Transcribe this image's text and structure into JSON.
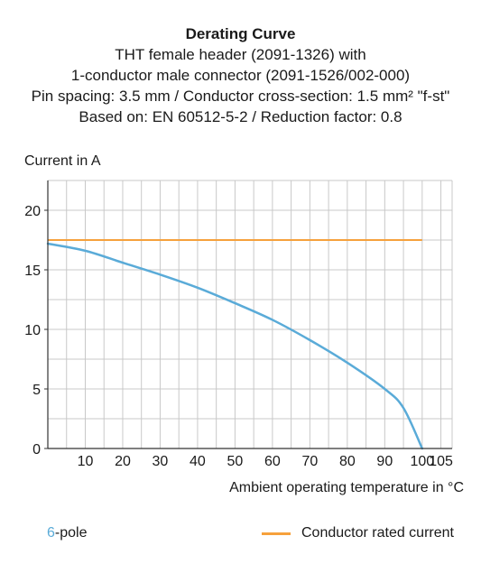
{
  "header": {
    "title": "Derating Curve",
    "lines": [
      "THT female header (2091-1326) with",
      "1-conductor male connector (2091-1526/002-000)",
      "Pin spacing: 3.5 mm / Conductor cross-section: 1.5 mm² \"f-st\"",
      "Based on: EN 60512-5-2 / Reduction factor: 0.8"
    ]
  },
  "legend": {
    "series_number": "6",
    "series_suffix": "-pole",
    "rated_label": "Conductor rated current"
  },
  "colors": {
    "curve": "#5aabd8",
    "rated": "#f6a13c",
    "grid": "#c8c8c8",
    "axis": "#333333"
  },
  "chart_data": {
    "type": "line",
    "xlabel": "Ambient operating temperature in °C",
    "ylabel": "Current in A",
    "xlim": [
      0,
      108
    ],
    "ylim": [
      0,
      22.5
    ],
    "xticks": [
      10,
      20,
      30,
      40,
      50,
      60,
      70,
      80,
      90,
      100,
      105
    ],
    "yticks": [
      0,
      5,
      10,
      15,
      20
    ],
    "grid": true,
    "series": [
      {
        "name": "6-pole",
        "x": [
          0,
          10,
          20,
          30,
          40,
          50,
          60,
          70,
          80,
          90,
          95,
          100
        ],
        "y": [
          17.2,
          16.6,
          15.6,
          14.6,
          13.5,
          12.2,
          10.8,
          9.1,
          7.2,
          5.0,
          3.4,
          0
        ]
      },
      {
        "name": "Conductor rated current",
        "x": [
          0,
          100
        ],
        "y": [
          17.5,
          17.5
        ]
      }
    ]
  }
}
